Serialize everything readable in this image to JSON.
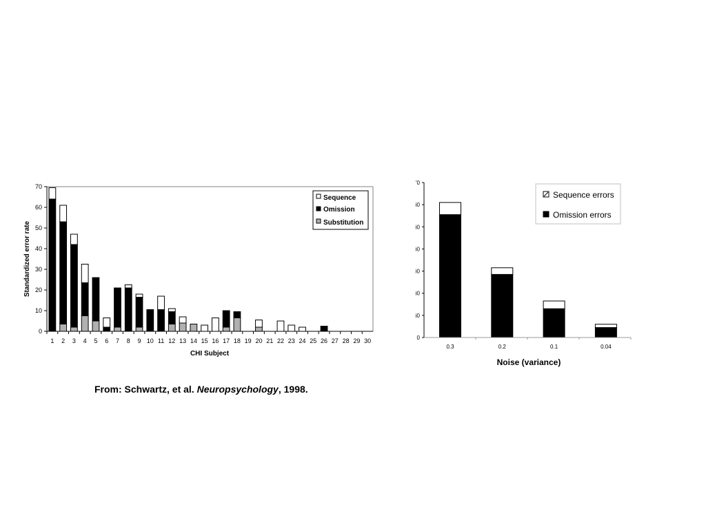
{
  "chart_data": [
    {
      "type": "bar",
      "stacked": true,
      "xlabel": "CHI Subject",
      "ylabel": "Standardized error rate",
      "ylim": [
        0,
        70
      ],
      "yticks": [
        0,
        10,
        20,
        30,
        40,
        50,
        60,
        70
      ],
      "categories": [
        "1",
        "2",
        "3",
        "4",
        "5",
        "6",
        "7",
        "8",
        "9",
        "10",
        "11",
        "12",
        "13",
        "14",
        "15",
        "16",
        "17",
        "18",
        "19",
        "20",
        "21",
        "22",
        "23",
        "24",
        "25",
        "26",
        "27",
        "28",
        "29",
        "30"
      ],
      "legend_position": "top-right",
      "series": [
        {
          "name": "Substitution",
          "color": "#b0b0b0",
          "values": [
            0,
            3.5,
            2,
            7.5,
            5,
            0,
            2,
            0,
            2,
            0,
            0,
            3.5,
            4,
            3.5,
            0,
            0,
            2,
            6.5,
            0,
            2,
            0,
            0,
            0,
            0,
            0,
            0,
            0,
            0,
            0,
            0
          ]
        },
        {
          "name": "Omission",
          "color": "#000000",
          "values": [
            64,
            49.5,
            40,
            16,
            21,
            2,
            19,
            21,
            14.5,
            10.5,
            10.5,
            6,
            0,
            0,
            0,
            0,
            8,
            3,
            0,
            0,
            0,
            0,
            0,
            0,
            0,
            2.5,
            0,
            0,
            0,
            0
          ]
        },
        {
          "name": "Sequence",
          "color": "#ffffff",
          "values": [
            5.5,
            8,
            5,
            9,
            0,
            4.5,
            0,
            1.5,
            1.5,
            0,
            6.5,
            1.5,
            3,
            0,
            3,
            6.5,
            0,
            0,
            0,
            3.5,
            0,
            5,
            3,
            2,
            0,
            0,
            0,
            0,
            0,
            0
          ]
        }
      ]
    },
    {
      "type": "bar",
      "stacked": true,
      "xlabel": "Noise (variance)",
      "ylabel": "",
      "ylim": [
        0,
        70
      ],
      "ytick_fragments": [
        "'0",
        "i0",
        "i0",
        "i0",
        "i0",
        "i0",
        "i0",
        "0"
      ],
      "categories": [
        "0.3",
        "0.2",
        "0.1",
        "0.04"
      ],
      "legend_position": "top-right",
      "series": [
        {
          "name": "Omission errors",
          "color": "#000000",
          "values": [
            55.5,
            28.5,
            13,
            4.5
          ]
        },
        {
          "name": "Sequence errors",
          "color": "#ffffff",
          "values": [
            5.5,
            3,
            3.5,
            1.5
          ]
        }
      ]
    }
  ],
  "caption": {
    "prefix": "From: Schwartz, et al. ",
    "journal": "Neuropsychology",
    "suffix": ", 1998."
  }
}
